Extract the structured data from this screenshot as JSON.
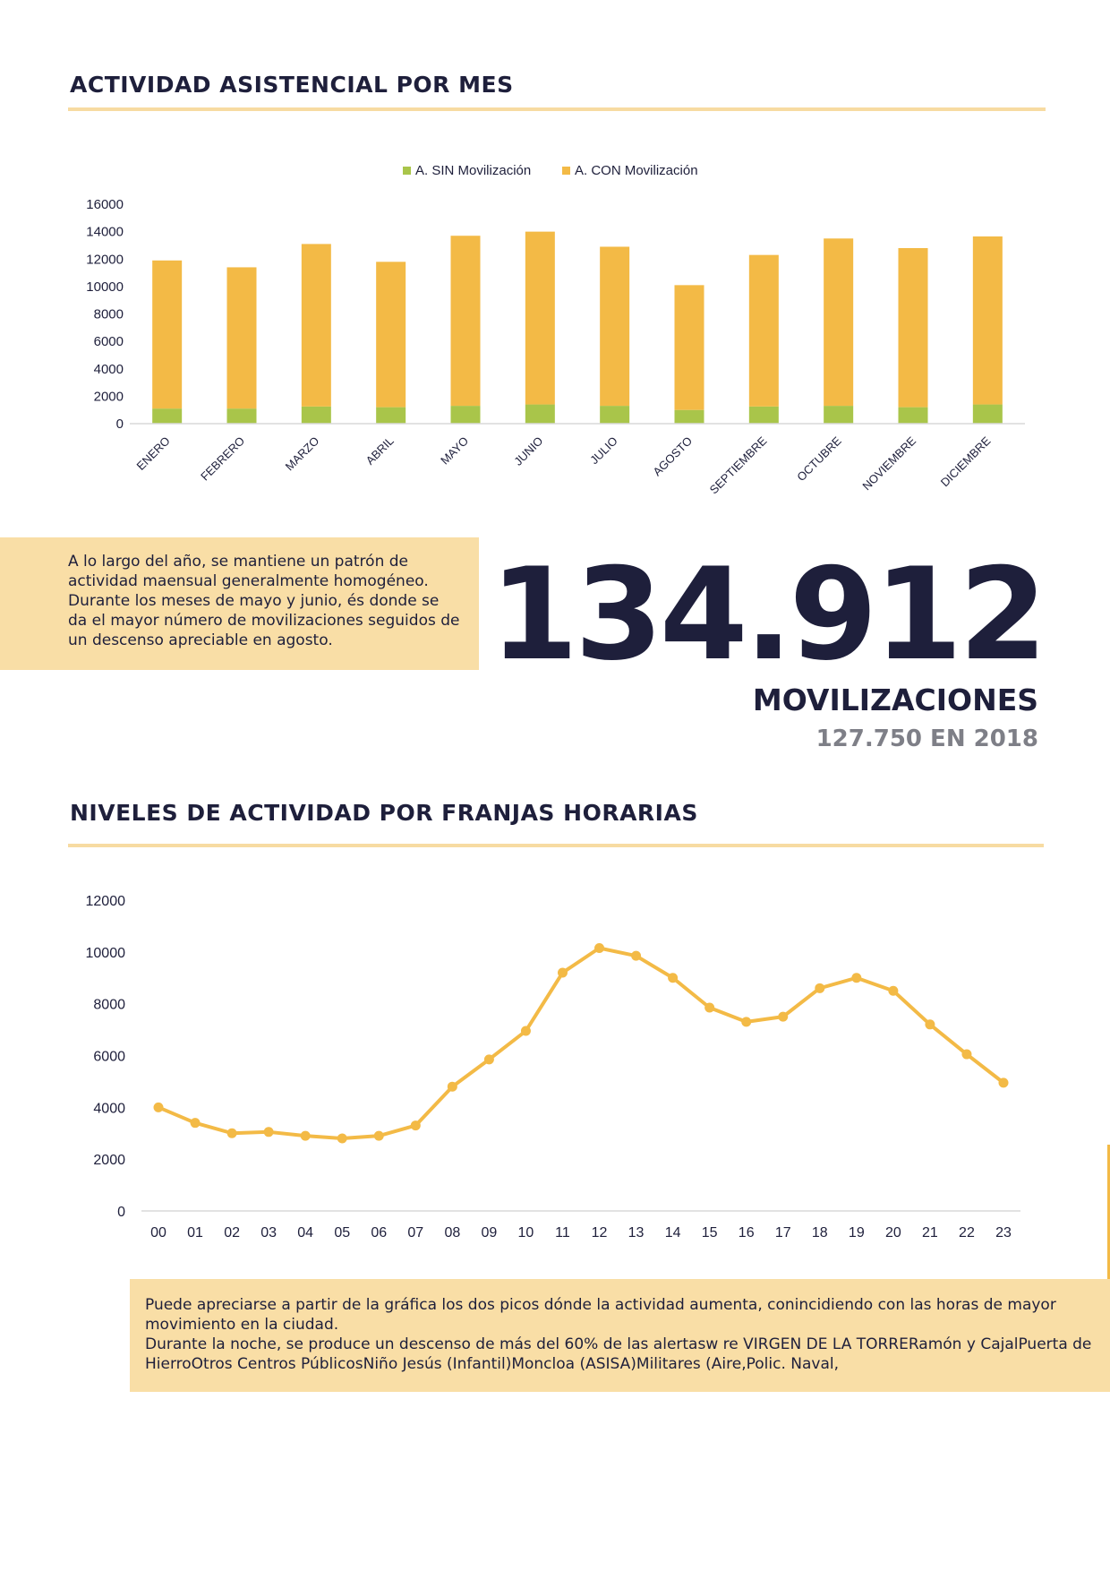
{
  "section1": {
    "title": "ACTIVIDAD ASISTENCIAL POR MES"
  },
  "section2": {
    "title": "NIVELES DE ACTIVIDAD POR FRANJAS HORARIAS"
  },
  "colors": {
    "sin": "#a9c54a",
    "con": "#f3ba46",
    "line": "#f3ba46",
    "navy": "#1e1f3b",
    "rule": "#f7dba2",
    "note_bg": "#f9dea6"
  },
  "chart_data": [
    {
      "type": "bar",
      "stacked": true,
      "title": "",
      "legend_position": "top",
      "categories": [
        "ENERO",
        "FEBRERO",
        "MARZO",
        "ABRIL",
        "MAYO",
        "JUNIO",
        "JULIO",
        "AGOSTO",
        "SEPTIEMBRE",
        "OCTUBRE",
        "NOVIEMBRE",
        "DICIEMBRE"
      ],
      "series": [
        {
          "name": "A. SIN Movilización",
          "values": [
            1100,
            1100,
            1250,
            1200,
            1300,
            1400,
            1300,
            1000,
            1250,
            1300,
            1200,
            1400
          ]
        },
        {
          "name": "A. CON Movilización",
          "values": [
            10800,
            10300,
            11850,
            10600,
            12400,
            12600,
            11600,
            9100,
            11050,
            12200,
            11600,
            12250
          ]
        }
      ],
      "yticks": [
        "0",
        "2000",
        "4000",
        "6000",
        "8000",
        "10000",
        "12000",
        "14000",
        "16000"
      ],
      "ylim": [
        0,
        16000
      ],
      "grid": false
    },
    {
      "type": "line",
      "title": "",
      "x": [
        "00",
        "01",
        "02",
        "03",
        "04",
        "05",
        "06",
        "07",
        "08",
        "09",
        "10",
        "11",
        "12",
        "13",
        "14",
        "15",
        "16",
        "17",
        "18",
        "19",
        "20",
        "21",
        "22",
        "23"
      ],
      "values": [
        4000,
        3400,
        3000,
        3050,
        2900,
        2800,
        2900,
        3300,
        4800,
        5850,
        6950,
        9200,
        10150,
        9850,
        9000,
        7850,
        7300,
        7500,
        8600,
        9000,
        8500,
        7200,
        6050,
        4950
      ],
      "yticks": [
        "0",
        "2000",
        "4000",
        "6000",
        "8000",
        "10000",
        "12000"
      ],
      "ylim": [
        0,
        12000
      ],
      "grid": false
    }
  ],
  "notes": {
    "monthly": "A lo largo del año, se mantiene un patrón de actividad maensual generalmente homogéneo. Durante los meses de mayo y junio, és donde se da el mayor número de movilizaciones seguidos de un descenso apreciable en agosto.",
    "hourly_line1": "Puede apreciarse a partir de la gráfica los dos picos dónde la actividad aumenta, conincidiendo con las horas de mayor movimiento en la ciudad.",
    "hourly_line2": "Durante la noche, se produce un descenso de más del 60% de las alertasw re VIRGEN DE LA TORRERamón y CajalPuerta de HierroOtros Centros PúblicosNiño Jesús (Infantil)Moncloa (ASISA)Militares (Aire,Polic. Naval,"
  },
  "kpi": {
    "total": "134.912",
    "label": "MOVILIZACIONES",
    "previous": "127.750 EN 2018"
  }
}
